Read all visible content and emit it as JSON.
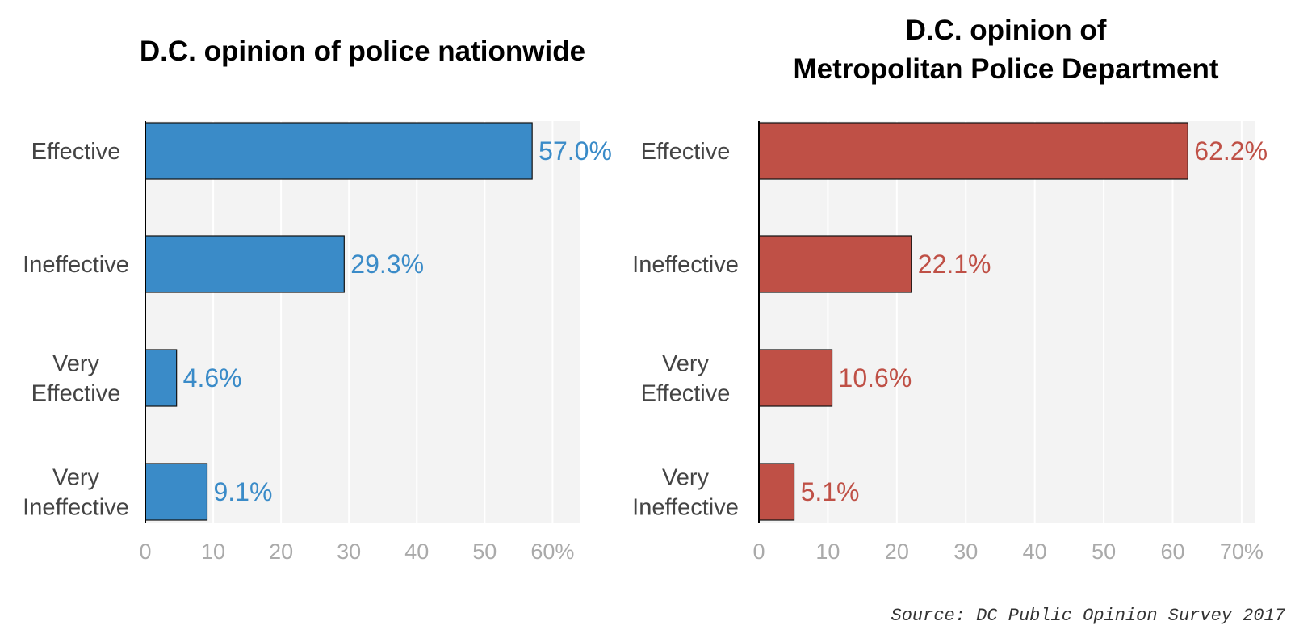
{
  "chart_data": [
    {
      "type": "bar",
      "orientation": "horizontal",
      "title": [
        "D.C. opinion of police nationwide"
      ],
      "categories": [
        [
          "Effective"
        ],
        [
          "Ineffective"
        ],
        [
          "Very",
          "Effective"
        ],
        [
          "Very",
          "Ineffective"
        ]
      ],
      "values": [
        57.0,
        29.3,
        4.6,
        9.1
      ],
      "value_labels": [
        "57.0%",
        "29.3%",
        "4.6%",
        "9.1%"
      ],
      "xlim": [
        0,
        64
      ],
      "xticks": [
        0,
        10,
        20,
        30,
        40,
        50,
        60
      ],
      "xtick_labels": [
        "0",
        "10",
        "20",
        "30",
        "40",
        "50",
        "60%"
      ],
      "color": "#3a8bc8",
      "grid": true
    },
    {
      "type": "bar",
      "orientation": "horizontal",
      "title": [
        "D.C. opinion of",
        "Metropolitan Police Department"
      ],
      "categories": [
        [
          "Effective"
        ],
        [
          "Ineffective"
        ],
        [
          "Very",
          "Effective"
        ],
        [
          "Very",
          "Ineffective"
        ]
      ],
      "values": [
        62.2,
        22.1,
        10.6,
        5.1
      ],
      "value_labels": [
        "62.2%",
        "22.1%",
        "10.6%",
        "5.1%"
      ],
      "xlim": [
        0,
        72
      ],
      "xticks": [
        0,
        10,
        20,
        30,
        40,
        50,
        60,
        70
      ],
      "xtick_labels": [
        "0",
        "10",
        "20",
        "30",
        "40",
        "50",
        "60",
        "70%"
      ],
      "color": "#bf5046",
      "grid": true
    }
  ],
  "source": "Source: DC Public Opinion Survey 2017"
}
